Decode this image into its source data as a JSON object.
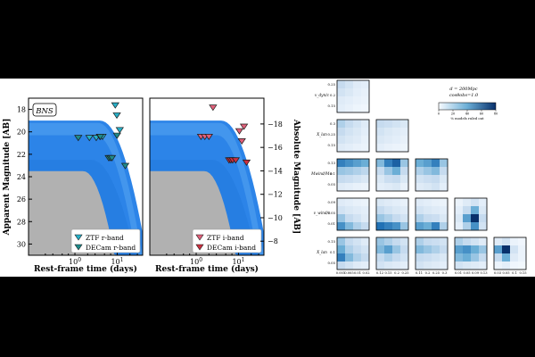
{
  "chart_data": [
    {
      "type": "scatter",
      "subtype": "light-curve-pair",
      "model_label": "BNS",
      "xlabel": "Rest-frame time (days)",
      "ylabel_left": "Apparent Magnitude [AB]",
      "ylabel_right": "Absolute Magnitude [AB]",
      "x_scale": "log",
      "xlim": [
        0.08,
        40
      ],
      "ylim_apparent": [
        31,
        17
      ],
      "ylim_absolute": [
        -6.8,
        -20.2
      ],
      "apparent_ticks": [
        "18",
        "20",
        "22",
        "24",
        "26",
        "28",
        "30"
      ],
      "absolute_ticks": [
        "-18",
        "-16",
        "-14",
        "-12",
        "-10",
        "-8"
      ],
      "x_ticks": [
        "10^0",
        "10^1"
      ],
      "colors": {
        "model_band": "#1a7ae6",
        "background_band": "#a8a8a8",
        "r_band": "#27b0c8",
        "i_band": "#e85a6a"
      },
      "panels": [
        {
          "legend": [
            "ZTF r-band",
            "DECam r-band"
          ],
          "series": [
            {
              "name": "ZTF r-band",
              "marker": "triangle-down",
              "color": "#27b0c8",
              "points": [
                [
                  2.2,
                  20.5
                ],
                [
                  3.2,
                  20.5
                ],
                [
                  3.9,
                  20.4
                ],
                [
                  4.5,
                  20.4
                ],
                [
                  9.0,
                  17.6
                ],
                [
                  9.8,
                  18.5
                ],
                [
                  11.5,
                  19.8
                ]
              ]
            },
            {
              "name": "DECam r-band",
              "marker": "triangle-down",
              "color": "#1f8a8a",
              "points": [
                [
                  1.2,
                  20.5
                ],
                [
                  4.0,
                  20.4
                ],
                [
                  6.3,
                  22.3
                ],
                [
                  6.9,
                  22.3
                ],
                [
                  7.5,
                  22.3
                ],
                [
                  15.5,
                  23.0
                ],
                [
                  9.9,
                  20.3
                ]
              ]
            }
          ]
        },
        {
          "legend": [
            "ZTF i-band",
            "DECam i-band"
          ],
          "series": [
            {
              "name": "ZTF i-band",
              "marker": "triangle-down",
              "color": "#e0607a",
              "points": [
                [
                  2.5,
                  17.8
                ],
                [
                  1.3,
                  20.4
                ],
                [
                  1.6,
                  20.4
                ],
                [
                  2.0,
                  20.4
                ],
                [
                  10.5,
                  19.9
                ],
                [
                  12.0,
                  20.8
                ],
                [
                  13.5,
                  19.5
                ]
              ]
            },
            {
              "name": "DECam i-band",
              "marker": "triangle-down",
              "color": "#cc3040",
              "points": [
                [
                  6.0,
                  22.5
                ],
                [
                  6.6,
                  22.5
                ],
                [
                  7.3,
                  22.5
                ],
                [
                  8.6,
                  22.5
                ],
                [
                  15.5,
                  22.7
                ]
              ]
            }
          ]
        }
      ]
    },
    {
      "type": "heatmap",
      "subtype": "corner-plot",
      "annotation": [
        "d = 200Mpc",
        "cosθobs=1.0"
      ],
      "colorbar_ticks": [
        "0",
        "20",
        "40",
        "60",
        "80"
      ],
      "colorbar_label": "% models ruled out",
      "variables": [
        "Mdyn/M⊙",
        "v_dyn/c",
        "X_lan",
        "Mwind/M⊙",
        "v_wind/c"
      ],
      "row_labels": [
        "v_dyn/c",
        "X_lan",
        "Mwind/M⊙",
        "v_wind/c",
        "X_lan"
      ],
      "col_labels": [
        "Mdyn/M⊙",
        "v_dyn/c",
        "X_lan",
        "Mwind/M⊙",
        "v_wind/c"
      ],
      "col_tick_labels": [
        [
          "0.001",
          "0.005",
          "0.01",
          "0.02"
        ],
        [
          "0.12",
          "0.15",
          "0.2",
          "0.25"
        ],
        [
          "0.11",
          "0.2",
          "0.25",
          "0.3"
        ],
        [
          "0.01",
          "0.05",
          "0.09",
          "0.13"
        ],
        [
          "0.03",
          "0.05",
          "0.1",
          "0.15"
        ]
      ],
      "row_tick_labels": [
        [
          "0.25",
          "0.2",
          "0.15"
        ],
        [
          "0.3",
          "0.25",
          "0.15"
        ],
        [
          "0.13",
          "0.1",
          "0.05"
        ],
        [
          "0.09",
          "0.05",
          "0.01"
        ],
        [
          "0.15",
          "0.1",
          "0.05"
        ]
      ],
      "matrices": [
        [
          [
            20,
            15,
            10,
            8
          ],
          [
            15,
            12,
            8,
            6
          ],
          [
            10,
            8,
            6,
            5
          ],
          [
            8,
            6,
            4,
            3
          ]
        ],
        [
          [
            25,
            20,
            15,
            10
          ],
          [
            20,
            15,
            12,
            8
          ],
          [
            15,
            12,
            10,
            6
          ],
          [
            10,
            8,
            6,
            5
          ]
        ],
        [
          [
            20,
            18,
            15,
            12
          ],
          [
            15,
            12,
            10,
            8
          ],
          [
            12,
            10,
            8,
            6
          ],
          [
            8,
            6,
            5,
            4
          ]
        ],
        [
          [
            55,
            50,
            45,
            40
          ],
          [
            30,
            28,
            25,
            22
          ],
          [
            20,
            18,
            15,
            12
          ],
          [
            10,
            8,
            6,
            5
          ]
        ],
        [
          [
            35,
            55,
            65,
            30
          ],
          [
            20,
            30,
            40,
            20
          ],
          [
            12,
            18,
            20,
            12
          ],
          [
            8,
            10,
            12,
            6
          ]
        ],
        [
          [
            40,
            45,
            55,
            30
          ],
          [
            25,
            30,
            35,
            20
          ],
          [
            15,
            18,
            20,
            12
          ],
          [
            10,
            12,
            15,
            8
          ]
        ],
        [
          [
            10,
            8,
            6,
            5
          ],
          [
            15,
            12,
            10,
            8
          ],
          [
            30,
            20,
            15,
            10
          ],
          [
            50,
            35,
            25,
            20
          ]
        ],
        [
          [
            12,
            10,
            8,
            6
          ],
          [
            20,
            15,
            12,
            10
          ],
          [
            30,
            25,
            20,
            15
          ],
          [
            60,
            55,
            50,
            30
          ]
        ],
        [
          [
            10,
            8,
            6,
            5
          ],
          [
            15,
            12,
            10,
            8
          ],
          [
            25,
            20,
            18,
            12
          ],
          [
            45,
            40,
            55,
            25
          ]
        ],
        [
          [
            5,
            10,
            15,
            8
          ],
          [
            8,
            20,
            40,
            12
          ],
          [
            12,
            45,
            80,
            20
          ],
          [
            8,
            25,
            50,
            15
          ]
        ],
        [
          [
            30,
            20,
            15,
            10
          ],
          [
            40,
            25,
            20,
            15
          ],
          [
            55,
            35,
            25,
            20
          ],
          [
            20,
            15,
            10,
            8
          ]
        ],
        [
          [
            30,
            25,
            20,
            15
          ],
          [
            35,
            45,
            30,
            20
          ],
          [
            20,
            25,
            20,
            15
          ],
          [
            15,
            12,
            10,
            8
          ]
        ],
        [
          [
            25,
            20,
            18,
            15
          ],
          [
            35,
            30,
            25,
            20
          ],
          [
            20,
            18,
            15,
            12
          ],
          [
            15,
            12,
            10,
            8
          ]
        ],
        [
          [
            25,
            20,
            15,
            10
          ],
          [
            45,
            50,
            40,
            30
          ],
          [
            35,
            40,
            30,
            20
          ],
          [
            15,
            12,
            10,
            8
          ]
        ],
        [
          [
            10,
            15,
            5,
            3
          ],
          [
            45,
            80,
            15,
            5
          ],
          [
            20,
            40,
            10,
            5
          ],
          [
            5,
            8,
            3,
            2
          ]
        ]
      ]
    }
  ]
}
